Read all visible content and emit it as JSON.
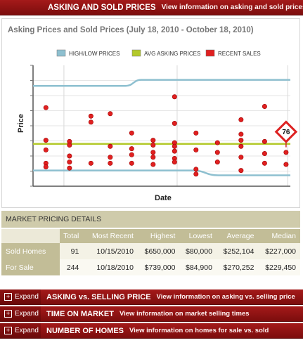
{
  "header": {
    "title": "ASKING AND SOLD PRICES",
    "desc": "View information on asking and sold prices"
  },
  "colors": {
    "bar_red": "#8b1111",
    "highlow": "#8ec0d0",
    "avg": "#b3c92a",
    "sales": "#e02020",
    "table_header": "#c2bd97"
  },
  "chart_data": {
    "type": "scatter",
    "title": "Asking Prices and Sold Prices (July 18, 2010 - October 18, 2010)",
    "xlabel": "Date",
    "ylabel": "Price",
    "xlim": [
      0,
      100
    ],
    "ylim": [
      0,
      100
    ],
    "grid": true,
    "legend": {
      "position": "top-center",
      "entries": [
        {
          "label": "HIGH/LOW PRICES",
          "color": "#8ec0d0"
        },
        {
          "label": "AVG ASKING PRICES",
          "color": "#b3c92a"
        },
        {
          "label": "RECENT SALES",
          "color": "#e02020"
        }
      ]
    },
    "high_line": {
      "x": [
        0,
        36,
        42,
        100
      ],
      "y": [
        83,
        83,
        88,
        88
      ]
    },
    "low_line": {
      "x": [
        0,
        62,
        72,
        100
      ],
      "y": [
        13,
        13,
        9,
        9
      ]
    },
    "avg_line": {
      "x": [
        0,
        100
      ],
      "y": [
        35,
        35
      ]
    },
    "sales": [
      {
        "x": 6,
        "y": 65
      },
      {
        "x": 6,
        "y": 38
      },
      {
        "x": 6,
        "y": 30
      },
      {
        "x": 6,
        "y": 19
      },
      {
        "x": 6,
        "y": 16
      },
      {
        "x": 17,
        "y": 37
      },
      {
        "x": 17,
        "y": 34
      },
      {
        "x": 17,
        "y": 25
      },
      {
        "x": 17,
        "y": 20
      },
      {
        "x": 17,
        "y": 15
      },
      {
        "x": 27,
        "y": 58
      },
      {
        "x": 27,
        "y": 53
      },
      {
        "x": 27,
        "y": 19
      },
      {
        "x": 36,
        "y": 60
      },
      {
        "x": 36,
        "y": 33
      },
      {
        "x": 36,
        "y": 24
      },
      {
        "x": 36,
        "y": 19
      },
      {
        "x": 46,
        "y": 31
      },
      {
        "x": 46,
        "y": 44
      },
      {
        "x": 46,
        "y": 26
      },
      {
        "x": 46,
        "y": 19
      },
      {
        "x": 56,
        "y": 38
      },
      {
        "x": 56,
        "y": 34
      },
      {
        "x": 56,
        "y": 28
      },
      {
        "x": 56,
        "y": 24
      },
      {
        "x": 56,
        "y": 18
      },
      {
        "x": 66,
        "y": 74
      },
      {
        "x": 66,
        "y": 52
      },
      {
        "x": 66,
        "y": 36
      },
      {
        "x": 66,
        "y": 33
      },
      {
        "x": 66,
        "y": 29
      },
      {
        "x": 66,
        "y": 23
      },
      {
        "x": 66,
        "y": 20
      },
      {
        "x": 76,
        "y": 44
      },
      {
        "x": 76,
        "y": 30
      },
      {
        "x": 76,
        "y": 14
      },
      {
        "x": 76,
        "y": 10
      },
      {
        "x": 86,
        "y": 36
      },
      {
        "x": 86,
        "y": 28
      },
      {
        "x": 86,
        "y": 20
      },
      {
        "x": 97,
        "y": 43
      },
      {
        "x": 97,
        "y": 33
      },
      {
        "x": 97,
        "y": 24
      },
      {
        "x": 97,
        "y": 13
      },
      {
        "x": 97,
        "y": 55
      },
      {
        "x": 97,
        "y": 38
      },
      {
        "x": 108,
        "y": 37
      },
      {
        "x": 108,
        "y": 27
      },
      {
        "x": 108,
        "y": 19
      },
      {
        "x": 108,
        "y": 66
      },
      {
        "x": 118,
        "y": 28
      },
      {
        "x": 118,
        "y": 18
      }
    ],
    "callout": {
      "label": "76",
      "x": 118,
      "y": 45
    }
  },
  "details": {
    "section_title": "MARKET PRICING DETAILS",
    "columns": [
      "Total",
      "Most Recent",
      "Highest",
      "Lowest",
      "Average",
      "Median"
    ],
    "rows": [
      {
        "label": "Sold Homes",
        "values": [
          "91",
          "10/15/2010",
          "$650,000",
          "$80,000",
          "$252,104",
          "$227,000"
        ]
      },
      {
        "label": "For Sale",
        "values": [
          "244",
          "10/18/2010",
          "$739,000",
          "$84,900",
          "$270,252",
          "$229,450"
        ]
      }
    ]
  },
  "expand_panels": [
    {
      "button": "Expand",
      "title": "ASKING vs. SELLING PRICE",
      "desc": "View information on asking vs. selling price"
    },
    {
      "button": "Expand",
      "title": "TIME ON MARKET",
      "desc": "View information on market selling times"
    },
    {
      "button": "Expand",
      "title": "NUMBER OF HOMES",
      "desc": "View information on homes for sale vs. sold"
    }
  ]
}
